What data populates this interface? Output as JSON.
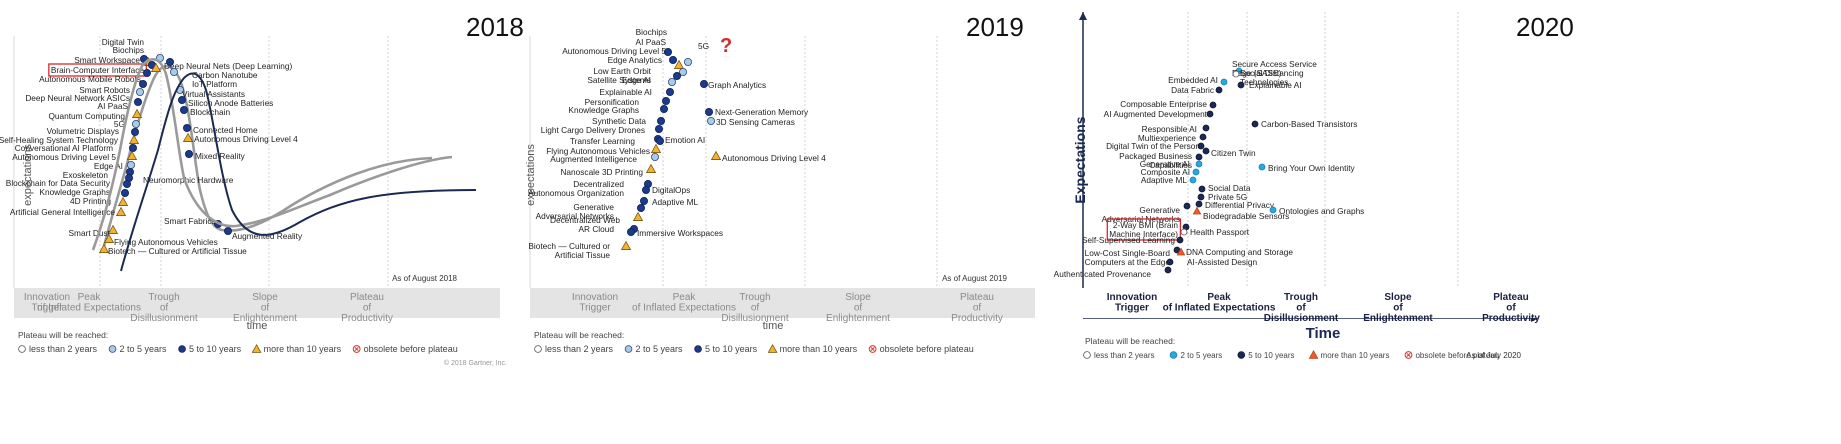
{
  "panels": [
    {
      "year": "2018",
      "as_of": "As of August 2018",
      "copyright": "© 2018 Gartner, Inc.",
      "axis_y": "expectations",
      "axis_x": "time",
      "phases": [
        "Innovation Trigger",
        "Peak of Inflated Expectations",
        "Trough of Disillusionment",
        "Slope of Enlightenment",
        "Plateau of Productivity"
      ],
      "legend_title": "Plateau will be reached:",
      "legend": [
        "less than 2 years",
        "2 to 5 years",
        "5 to 10 years",
        "more than 10 years",
        "obsolete before plateau"
      ],
      "highlight": "Brain-Computer Interface"
    },
    {
      "year": "2019",
      "as_of": "As of August 2019",
      "axis_y": "expectations",
      "axis_x": "time",
      "phases": [
        "Innovation Trigger",
        "Peak of Inflated Expectations",
        "Trough of Disillusionment",
        "Slope of Enlightenment",
        "Plateau of Productivity"
      ],
      "legend_title": "Plateau will be reached:",
      "legend": [
        "less than 2 years",
        "2 to 5 years",
        "5 to 10 years",
        "more than 10 years",
        "obsolete before plateau"
      ],
      "question_mark": "?"
    },
    {
      "year": "2020",
      "as_of": "As of July 2020",
      "axis_y": "Expectations",
      "axis_x": "Time",
      "phases": [
        "Innovation Trigger",
        "Peak of Inflated Expectations",
        "Trough of Disillusionment",
        "Slope of Enlightenment",
        "Plateau of Productivity"
      ],
      "legend_title": "Plateau will be reached:",
      "legend": [
        "less than 2 years",
        "2 to 5 years",
        "5 to 10 years",
        "more than 10 years",
        "obsolete before plateau"
      ],
      "highlight": "2-Way BMI (Brain Machine Interface)"
    }
  ],
  "chart_data": [
    {
      "type": "scatter",
      "title": "2018",
      "xlabel": "time",
      "ylabel": "expectations",
      "points": [
        {
          "label": "Digital Twin",
          "horizon": "5 to 10 years"
        },
        {
          "label": "Biochips",
          "horizon": "more than 10 years"
        },
        {
          "label": "Smart Workspace",
          "horizon": "5 to 10 years"
        },
        {
          "label": "Brain-Computer Interface",
          "horizon": "more than 10 years"
        },
        {
          "label": "Autonomous Mobile Robots",
          "horizon": "5 to 10 years"
        },
        {
          "label": "Deep Neural Nets (Deep Learning)",
          "horizon": "2 to 5 years"
        },
        {
          "label": "Carbon Nanotube",
          "horizon": "5 to 10 years"
        },
        {
          "label": "IoT Platform",
          "horizon": "2 to 5 years"
        },
        {
          "label": "Smart Robots",
          "horizon": "5 to 10 years"
        },
        {
          "label": "Deep Neural Network ASICs",
          "horizon": "2 to 5 years"
        },
        {
          "label": "AI PaaS",
          "horizon": "5 to 10 years"
        },
        {
          "label": "Virtual Assistants",
          "horizon": "2 to 5 years"
        },
        {
          "label": "Silicon Anode Batteries",
          "horizon": "5 to 10 years"
        },
        {
          "label": "Blockchain",
          "horizon": "5 to 10 years"
        },
        {
          "label": "Quantum Computing",
          "horizon": "more than 10 years"
        },
        {
          "label": "5G",
          "horizon": "2 to 5 years"
        },
        {
          "label": "Volumetric Displays",
          "horizon": "5 to 10 years"
        },
        {
          "label": "Connected Home",
          "horizon": "5 to 10 years"
        },
        {
          "label": "Autonomous Driving Level 4",
          "horizon": "more than 10 years"
        },
        {
          "label": "Self-Healing System Technology",
          "horizon": "more than 10 years"
        },
        {
          "label": "Conversational AI Platform",
          "horizon": "5 to 10 years"
        },
        {
          "label": "Autonomous Driving Level 5",
          "horizon": "more than 10 years"
        },
        {
          "label": "Mixed Reality",
          "horizon": "5 to 10 years"
        },
        {
          "label": "Edge AI",
          "horizon": "2 to 5 years"
        },
        {
          "label": "Neuromorphic Hardware",
          "horizon": "5 to 10 years"
        },
        {
          "label": "Exoskeleton",
          "horizon": "5 to 10 years"
        },
        {
          "label": "Blockchain for Data Security",
          "horizon": "5 to 10 years"
        },
        {
          "label": "Knowledge Graphs",
          "horizon": "5 to 10 years"
        },
        {
          "label": "4D Printing",
          "horizon": "more than 10 years"
        },
        {
          "label": "Artificial General Intelligence",
          "horizon": "more than 10 years"
        },
        {
          "label": "Smart Fabrics",
          "horizon": "5 to 10 years"
        },
        {
          "label": "Augmented Reality",
          "horizon": "5 to 10 years"
        },
        {
          "label": "Smart Dust",
          "horizon": "more than 10 years"
        },
        {
          "label": "Flying Autonomous Vehicles",
          "horizon": "more than 10 years"
        },
        {
          "label": "Biotech — Cultured or Artificial Tissue",
          "horizon": "more than 10 years"
        }
      ]
    },
    {
      "type": "scatter",
      "title": "2019",
      "xlabel": "time",
      "ylabel": "expectations",
      "points": [
        {
          "label": "Biochips",
          "horizon": "5 to 10 years"
        },
        {
          "label": "AI PaaS",
          "horizon": "5 to 10 years"
        },
        {
          "label": "5G",
          "horizon": "2 to 5 years"
        },
        {
          "label": "Autonomous Driving Level 5",
          "horizon": "more than 10 years"
        },
        {
          "label": "Edge Analytics",
          "horizon": "2 to 5 years"
        },
        {
          "label": "Low Earth Orbit Satellite Systems",
          "horizon": "5 to 10 years"
        },
        {
          "label": "Edge AI",
          "horizon": "2 to 5 years"
        },
        {
          "label": "Graph Analytics",
          "horizon": "5 to 10 years"
        },
        {
          "label": "Explainable AI",
          "horizon": "5 to 10 years"
        },
        {
          "label": "Personification",
          "horizon": "5 to 10 years"
        },
        {
          "label": "Knowledge Graphs",
          "horizon": "5 to 10 years"
        },
        {
          "label": "Next-Generation Memory",
          "horizon": "5 to 10 years"
        },
        {
          "label": "3D Sensing Cameras",
          "horizon": "2 to 5 years"
        },
        {
          "label": "Synthetic Data",
          "horizon": "5 to 10 years"
        },
        {
          "label": "Light Cargo Delivery Drones",
          "horizon": "5 to 10 years"
        },
        {
          "label": "Transfer Learning",
          "horizon": "5 to 10 years"
        },
        {
          "label": "Emotion AI",
          "horizon": "5 to 10 years"
        },
        {
          "label": "Flying Autonomous Vehicles",
          "horizon": "more than 10 years"
        },
        {
          "label": "Augmented Intelligence",
          "horizon": "2 to 5 years"
        },
        {
          "label": "Autonomous Driving Level 4",
          "horizon": "more than 10 years"
        },
        {
          "label": "Nanoscale 3D Printing",
          "horizon": "more than 10 years"
        },
        {
          "label": "Decentralized Autonomous Organization",
          "horizon": "5 to 10 years"
        },
        {
          "label": "DigitalOps",
          "horizon": "5 to 10 years"
        },
        {
          "label": "Adaptive ML",
          "horizon": "5 to 10 years"
        },
        {
          "label": "Generative Adversarial Networks",
          "horizon": "5 to 10 years"
        },
        {
          "label": "Decentralized Web",
          "horizon": "more than 10 years"
        },
        {
          "label": "AR Cloud",
          "horizon": "5 to 10 years"
        },
        {
          "label": "Immersive Workspaces",
          "horizon": "5 to 10 years"
        },
        {
          "label": "Biotech — Cultured or Artificial Tissue",
          "horizon": "more than 10 years"
        }
      ]
    },
    {
      "type": "scatter",
      "title": "2020",
      "xlabel": "Time",
      "ylabel": "Expectations",
      "points": [
        {
          "label": "Secure Access Service Edge (SASE)",
          "horizon": "2 to 5 years"
        },
        {
          "label": "Social Distancing Technologies",
          "horizon": "less than 2 years"
        },
        {
          "label": "Embedded AI",
          "horizon": "2 to 5 years"
        },
        {
          "label": "Data Fabric",
          "horizon": "5 to 10 years"
        },
        {
          "label": "Explainable AI",
          "horizon": "5 to 10 years"
        },
        {
          "label": "Composable Enterprise",
          "horizon": "5 to 10 years"
        },
        {
          "label": "AI Augmented Development",
          "horizon": "5 to 10 years"
        },
        {
          "label": "Carbon-Based Transistors",
          "horizon": "5 to 10 years"
        },
        {
          "label": "Responsible AI",
          "horizon": "5 to 10 years"
        },
        {
          "label": "Multiexperience",
          "horizon": "5 to 10 years"
        },
        {
          "label": "Digital Twin of the Person",
          "horizon": "5 to 10 years"
        },
        {
          "label": "Citizen Twin",
          "horizon": "5 to 10 years"
        },
        {
          "label": "Packaged Business Capabilities",
          "horizon": "5 to 10 years"
        },
        {
          "label": "Generative AI",
          "horizon": "2 to 5 years"
        },
        {
          "label": "Bring Your Own Identity",
          "horizon": "2 to 5 years"
        },
        {
          "label": "Composite AI",
          "horizon": "2 to 5 years"
        },
        {
          "label": "Adaptive ML",
          "horizon": "2 to 5 years"
        },
        {
          "label": "Social Data",
          "horizon": "5 to 10 years"
        },
        {
          "label": "Private 5G",
          "horizon": "5 to 10 years"
        },
        {
          "label": "Differential Privacy",
          "horizon": "5 to 10 years"
        },
        {
          "label": "Generative Adversarial Networks",
          "horizon": "5 to 10 years"
        },
        {
          "label": "Biodegradable Sensors",
          "horizon": "more than 10 years"
        },
        {
          "label": "Ontologies and Graphs",
          "horizon": "2 to 5 years"
        },
        {
          "label": "2-Way BMI (Brain Machine Interface)",
          "horizon": "5 to 10 years"
        },
        {
          "label": "Health Passport",
          "horizon": "less than 2 years"
        },
        {
          "label": "Self-Supervised Learning",
          "horizon": "5 to 10 years"
        },
        {
          "label": "Low-Cost Single-Board Computers at the Edge",
          "horizon": "5 to 10 years"
        },
        {
          "label": "DNA Computing and Storage",
          "horizon": "more than 10 years"
        },
        {
          "label": "AI-Assisted Design",
          "horizon": "5 to 10 years"
        },
        {
          "label": "Authenticated Provenance",
          "horizon": "5 to 10 years"
        }
      ]
    }
  ]
}
